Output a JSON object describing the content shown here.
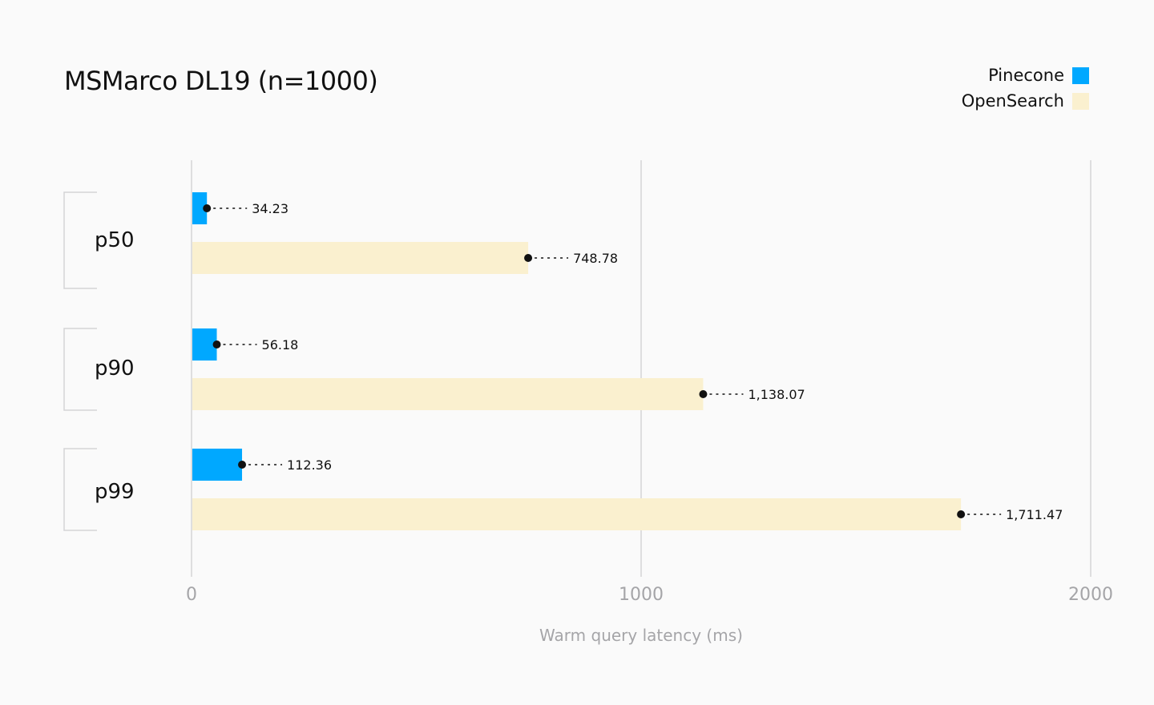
{
  "chart_data": {
    "type": "bar",
    "orientation": "horizontal",
    "title": "MSMarco DL19 (n=1000)",
    "xlabel": "Warm query latency (ms)",
    "ylabel": "",
    "categories": [
      "p50",
      "p90",
      "p99"
    ],
    "series": [
      {
        "name": "Pinecone",
        "color": "#00a8ff",
        "values": [
          34.23,
          56.18,
          112.36
        ],
        "labels": [
          "34.23",
          "56.18",
          "112.36"
        ]
      },
      {
        "name": "OpenSearch",
        "color": "#faf0cf",
        "values": [
          748.78,
          1138.07,
          1711.47
        ],
        "labels": [
          "748.78",
          "1,138.07",
          "1,711.47"
        ]
      }
    ],
    "xlim": [
      0,
      2000
    ],
    "xticks": [
      "0",
      "1000",
      "2000"
    ],
    "xtick_values": [
      0,
      1000,
      2000
    ],
    "grid": true,
    "legend": "top-right"
  }
}
